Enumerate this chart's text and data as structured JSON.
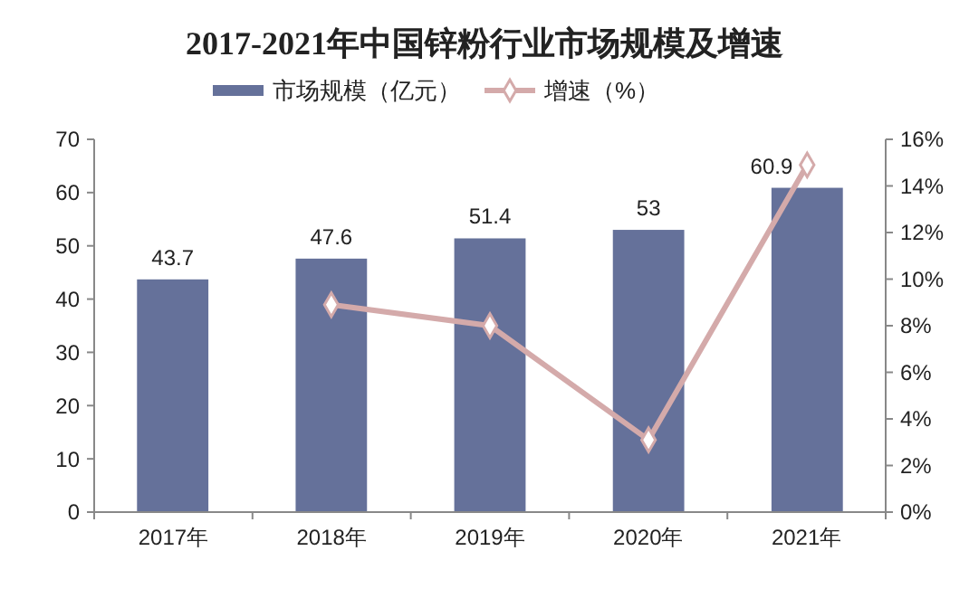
{
  "chart_data": {
    "type": "bar",
    "title": "2017-2021年中国锌粉行业市场规模及增速",
    "categories": [
      "2017年",
      "2018年",
      "2019年",
      "2020年",
      "2021年"
    ],
    "series": [
      {
        "name": "市场规模（亿元）",
        "color": "#65719a",
        "values": [
          43.7,
          47.6,
          51.4,
          53,
          60.9
        ],
        "value_labels": [
          "43.7",
          "47.6",
          "51.4",
          "53",
          "60.9"
        ]
      },
      {
        "name": "增速（%）",
        "type": "line",
        "axis": "y2",
        "color": "#d4aaaa",
        "marker": "diamond",
        "values": [
          null,
          8.9,
          8.0,
          3.1,
          14.9
        ]
      }
    ],
    "ylim": [
      0,
      70
    ],
    "yticks": [
      0,
      10,
      20,
      30,
      40,
      50,
      60,
      70
    ],
    "y2lim": [
      0,
      16
    ],
    "y2ticks": [
      {
        "value": 0,
        "label": "0%"
      },
      {
        "value": 2,
        "label": "2%"
      },
      {
        "value": 4,
        "label": "4%"
      },
      {
        "value": 6,
        "label": "6%"
      },
      {
        "value": 8,
        "label": "8%"
      },
      {
        "value": 10,
        "label": "10%"
      },
      {
        "value": 12,
        "label": "12%"
      },
      {
        "value": 14,
        "label": "14%"
      },
      {
        "value": 16,
        "label": "16%"
      }
    ],
    "legend": "top",
    "grid": false
  }
}
